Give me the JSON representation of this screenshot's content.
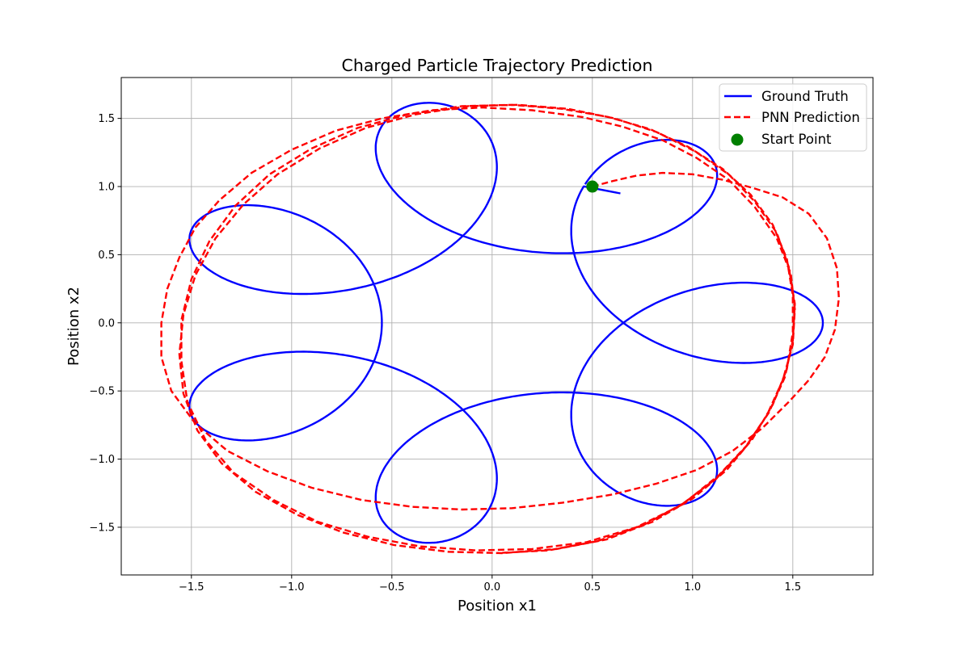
{
  "chart_data": {
    "type": "line",
    "title": "Charged Particle Trajectory Prediction",
    "xlabel": "Position x1",
    "ylabel": "Position x2",
    "xlim": [
      -1.85,
      1.9
    ],
    "ylim": [
      -1.85,
      1.8
    ],
    "xticks": [
      -1.5,
      -1.0,
      -0.5,
      0.0,
      0.5,
      1.0,
      1.5
    ],
    "yticks": [
      -1.5,
      -1.0,
      -0.5,
      0.0,
      0.5,
      1.0,
      1.5
    ],
    "xtick_labels": [
      "−1.5",
      "−1.0",
      "−0.5",
      "0.0",
      "0.5",
      "1.0",
      "1.5"
    ],
    "ytick_labels": [
      "−1.5",
      "−1.0",
      "−0.5",
      "0.0",
      "0.5",
      "1.0",
      "1.5"
    ],
    "grid": true,
    "legend_position": "top-right",
    "series": [
      {
        "name": "Ground Truth",
        "color": "#0000ff",
        "style": "solid",
        "rose": {
          "big_radius": 1.1,
          "small_radius": 0.55,
          "phase": 0.0
        },
        "start": [
          0.5,
          1.0
        ],
        "end": [
          0.64,
          0.95
        ]
      },
      {
        "name": "PNN Prediction",
        "color": "#ff0000",
        "style": "dashed",
        "points": [
          [
            0.5,
            1.0
          ],
          [
            0.6,
            1.04
          ],
          [
            0.72,
            1.08
          ],
          [
            0.85,
            1.1
          ],
          [
            1.0,
            1.09
          ],
          [
            1.15,
            1.05
          ],
          [
            1.3,
            0.99
          ],
          [
            1.45,
            0.92
          ],
          [
            1.58,
            0.8
          ],
          [
            1.67,
            0.62
          ],
          [
            1.72,
            0.4
          ],
          [
            1.73,
            0.18
          ],
          [
            1.71,
            -0.05
          ],
          [
            1.66,
            -0.25
          ],
          [
            1.58,
            -0.42
          ],
          [
            1.48,
            -0.58
          ],
          [
            1.35,
            -0.77
          ],
          [
            1.2,
            -0.94
          ],
          [
            1.02,
            -1.08
          ],
          [
            0.82,
            -1.18
          ],
          [
            0.6,
            -1.26
          ],
          [
            0.35,
            -1.32
          ],
          [
            0.1,
            -1.36
          ],
          [
            -0.15,
            -1.37
          ],
          [
            -0.4,
            -1.35
          ],
          [
            -0.65,
            -1.3
          ],
          [
            -0.9,
            -1.21
          ],
          [
            -1.12,
            -1.09
          ],
          [
            -1.32,
            -0.94
          ],
          [
            -1.48,
            -0.74
          ],
          [
            -1.6,
            -0.5
          ],
          [
            -1.65,
            -0.25
          ],
          [
            -1.65,
            0.0
          ],
          [
            -1.62,
            0.25
          ],
          [
            -1.56,
            0.48
          ],
          [
            -1.48,
            0.7
          ],
          [
            -1.36,
            0.9
          ],
          [
            -1.2,
            1.1
          ],
          [
            -1.0,
            1.27
          ],
          [
            -0.78,
            1.41
          ],
          [
            -0.55,
            1.5
          ],
          [
            -0.3,
            1.56
          ],
          [
            -0.05,
            1.58
          ],
          [
            0.2,
            1.56
          ],
          [
            0.45,
            1.51
          ],
          [
            0.65,
            1.44
          ],
          [
            0.85,
            1.34
          ],
          [
            1.02,
            1.21
          ],
          [
            1.18,
            1.05
          ],
          [
            1.31,
            0.85
          ],
          [
            1.42,
            0.62
          ],
          [
            1.49,
            0.36
          ],
          [
            1.51,
            0.1
          ],
          [
            1.5,
            -0.16
          ],
          [
            1.45,
            -0.42
          ],
          [
            1.37,
            -0.68
          ],
          [
            1.26,
            -0.92
          ],
          [
            1.12,
            -1.14
          ],
          [
            0.94,
            -1.34
          ],
          [
            0.72,
            -1.5
          ],
          [
            0.47,
            -1.61
          ],
          [
            0.2,
            -1.66
          ],
          [
            -0.08,
            -1.67
          ],
          [
            -0.36,
            -1.64
          ],
          [
            -0.62,
            -1.57
          ],
          [
            -0.87,
            -1.46
          ],
          [
            -1.09,
            -1.3
          ],
          [
            -1.29,
            -1.1
          ],
          [
            -1.43,
            -0.86
          ],
          [
            -1.52,
            -0.58
          ],
          [
            -1.55,
            -0.28
          ],
          [
            -1.55,
            0.02
          ],
          [
            -1.5,
            0.32
          ],
          [
            -1.41,
            0.6
          ],
          [
            -1.28,
            0.86
          ],
          [
            -1.11,
            1.09
          ],
          [
            -0.9,
            1.28
          ],
          [
            -0.67,
            1.43
          ],
          [
            -0.42,
            1.53
          ],
          [
            -0.15,
            1.59
          ],
          [
            0.1,
            1.6
          ],
          [
            0.35,
            1.57
          ],
          [
            0.58,
            1.51
          ],
          [
            0.79,
            1.42
          ],
          [
            0.98,
            1.29
          ],
          [
            1.15,
            1.13
          ],
          [
            1.29,
            0.94
          ],
          [
            1.4,
            0.72
          ],
          [
            1.47,
            0.47
          ],
          [
            1.5,
            0.2
          ],
          [
            1.5,
            -0.07
          ],
          [
            1.47,
            -0.34
          ],
          [
            1.4,
            -0.6
          ],
          [
            1.3,
            -0.85
          ],
          [
            1.17,
            -1.08
          ],
          [
            1.0,
            -1.29
          ],
          [
            0.8,
            -1.46
          ],
          [
            0.57,
            -1.59
          ],
          [
            0.32,
            -1.66
          ],
          [
            0.05,
            -1.69
          ],
          [
            -0.22,
            -1.68
          ],
          [
            -0.49,
            -1.63
          ],
          [
            -0.74,
            -1.54
          ],
          [
            -0.97,
            -1.41
          ],
          [
            -1.18,
            -1.24
          ],
          [
            -1.35,
            -1.03
          ],
          [
            -1.47,
            -0.79
          ],
          [
            -1.54,
            -0.52
          ],
          [
            -1.56,
            -0.23
          ],
          [
            -1.54,
            0.06
          ],
          [
            -1.48,
            0.35
          ],
          [
            -1.38,
            0.62
          ],
          [
            -1.24,
            0.87
          ],
          [
            -1.07,
            1.09
          ],
          [
            -0.86,
            1.28
          ],
          [
            -0.63,
            1.43
          ],
          [
            -0.38,
            1.53
          ],
          [
            -0.12,
            1.59
          ],
          [
            0.13,
            1.6
          ],
          [
            0.38,
            1.57
          ],
          [
            0.61,
            1.5
          ],
          [
            0.82,
            1.4
          ],
          [
            1.01,
            1.26
          ],
          [
            1.18,
            1.09
          ],
          [
            1.31,
            0.89
          ],
          [
            1.42,
            0.66
          ],
          [
            1.48,
            0.41
          ],
          [
            1.51,
            0.14
          ],
          [
            1.5,
            -0.13
          ],
          [
            1.46,
            -0.4
          ],
          [
            1.38,
            -0.66
          ],
          [
            1.27,
            -0.9
          ],
          [
            1.13,
            -1.12
          ],
          [
            0.96,
            -1.32
          ],
          [
            0.76,
            -1.48
          ],
          [
            0.53,
            -1.6
          ],
          [
            0.28,
            -1.67
          ],
          [
            0.02,
            -1.69
          ]
        ]
      },
      {
        "name": "Start Point",
        "color": "#008000",
        "style": "marker",
        "points": [
          [
            0.5,
            1.0
          ]
        ]
      }
    ],
    "legend": [
      {
        "label": "Ground Truth",
        "color": "#0000ff",
        "style": "solid"
      },
      {
        "label": "PNN Prediction",
        "color": "#ff0000",
        "style": "dashed"
      },
      {
        "label": "Start Point",
        "color": "#008000",
        "style": "marker"
      }
    ]
  }
}
